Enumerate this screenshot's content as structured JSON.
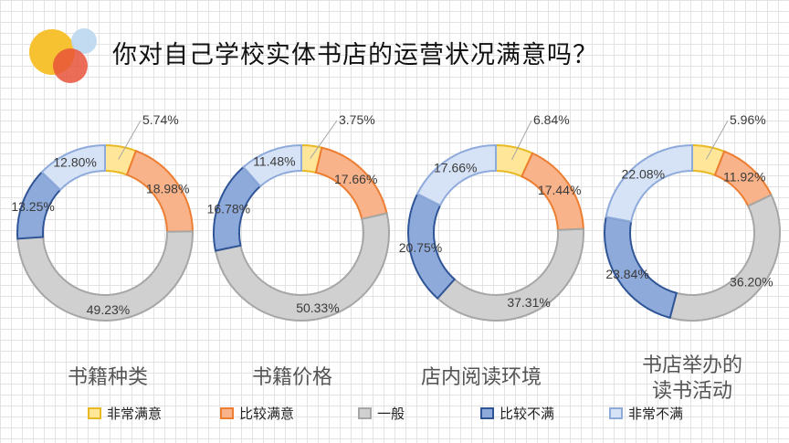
{
  "title": "你对自己学校实体书店的运营状况满意吗？",
  "legend": [
    {
      "label": "非常满意",
      "fill": "#FFE699",
      "stroke": "#E8B923"
    },
    {
      "label": "比较满意",
      "fill": "#F8B38A",
      "stroke": "#ED7D31"
    },
    {
      "label": "一般",
      "fill": "#D0D0D0",
      "stroke": "#A6A6A6"
    },
    {
      "label": "比较不满",
      "fill": "#8EAADB",
      "stroke": "#2F5597"
    },
    {
      "label": "非常不满",
      "fill": "#D6E2F5",
      "stroke": "#8EAADB"
    }
  ],
  "chart_data": [
    {
      "type": "pie",
      "variant": "doughnut",
      "title": "书籍种类",
      "categories": [
        "非常满意",
        "比较满意",
        "一般",
        "比较不满",
        "非常不满"
      ],
      "values": [
        5.74,
        18.98,
        49.23,
        13.25,
        12.8
      ],
      "labels": [
        "5.74%",
        "18.98%",
        "49.23%",
        "13.25%",
        "12.80%"
      ]
    },
    {
      "type": "pie",
      "variant": "doughnut",
      "title": "书籍价格",
      "categories": [
        "非常满意",
        "比较满意",
        "一般",
        "比较不满",
        "非常不满"
      ],
      "values": [
        3.75,
        17.66,
        50.33,
        16.78,
        11.48
      ],
      "labels": [
        "3.75%",
        "17.66%",
        "50.33%",
        "16.78%",
        "11.48%"
      ]
    },
    {
      "type": "pie",
      "variant": "doughnut",
      "title": "店内阅读环境",
      "categories": [
        "非常满意",
        "比较满意",
        "一般",
        "比较不满",
        "非常不满"
      ],
      "values": [
        6.84,
        17.44,
        37.31,
        20.75,
        17.66
      ],
      "labels": [
        "6.84%",
        "17.44%",
        "37.31%",
        "20.75%",
        "17.66%"
      ]
    },
    {
      "type": "pie",
      "variant": "doughnut",
      "title": "书店举办的读书活动",
      "title_lines": [
        "书店举办的",
        "读书活动"
      ],
      "categories": [
        "非常满意",
        "比较满意",
        "一般",
        "比较不满",
        "非常不满"
      ],
      "values": [
        5.96,
        11.92,
        36.2,
        23.84,
        22.08
      ],
      "labels": [
        "5.96%",
        "11.92%",
        "36.20%",
        "23.84%",
        "22.08%"
      ]
    }
  ]
}
